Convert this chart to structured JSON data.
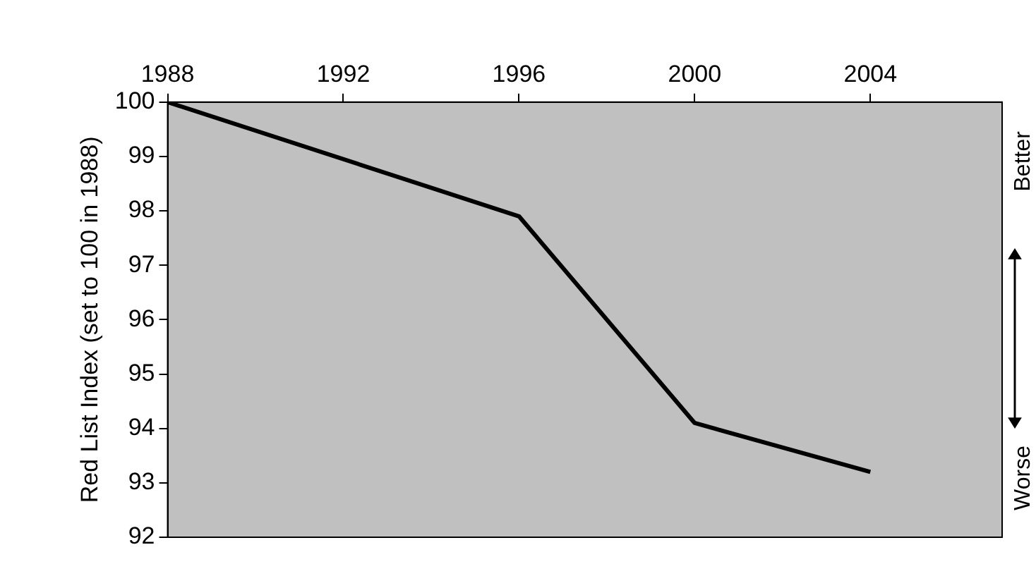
{
  "chart_data": {
    "type": "line",
    "ylabel": "Red List Index (set to 100 in 1988)",
    "x": [
      1988,
      1996,
      2000,
      2004
    ],
    "series": [
      {
        "color": "#000000",
        "values": [
          100,
          97.9,
          94.1,
          93.2
        ]
      }
    ],
    "xlim": [
      1988,
      2007
    ],
    "xticks": [
      1988,
      1992,
      1996,
      2000,
      2004
    ],
    "ylim": [
      92,
      100
    ],
    "yticks": [
      92,
      93,
      94,
      95,
      96,
      97,
      98,
      99,
      100
    ],
    "grid": false,
    "legend": false,
    "marker": "none",
    "line_style": "solid",
    "annotations": [
      "Better",
      "Worse"
    ]
  }
}
